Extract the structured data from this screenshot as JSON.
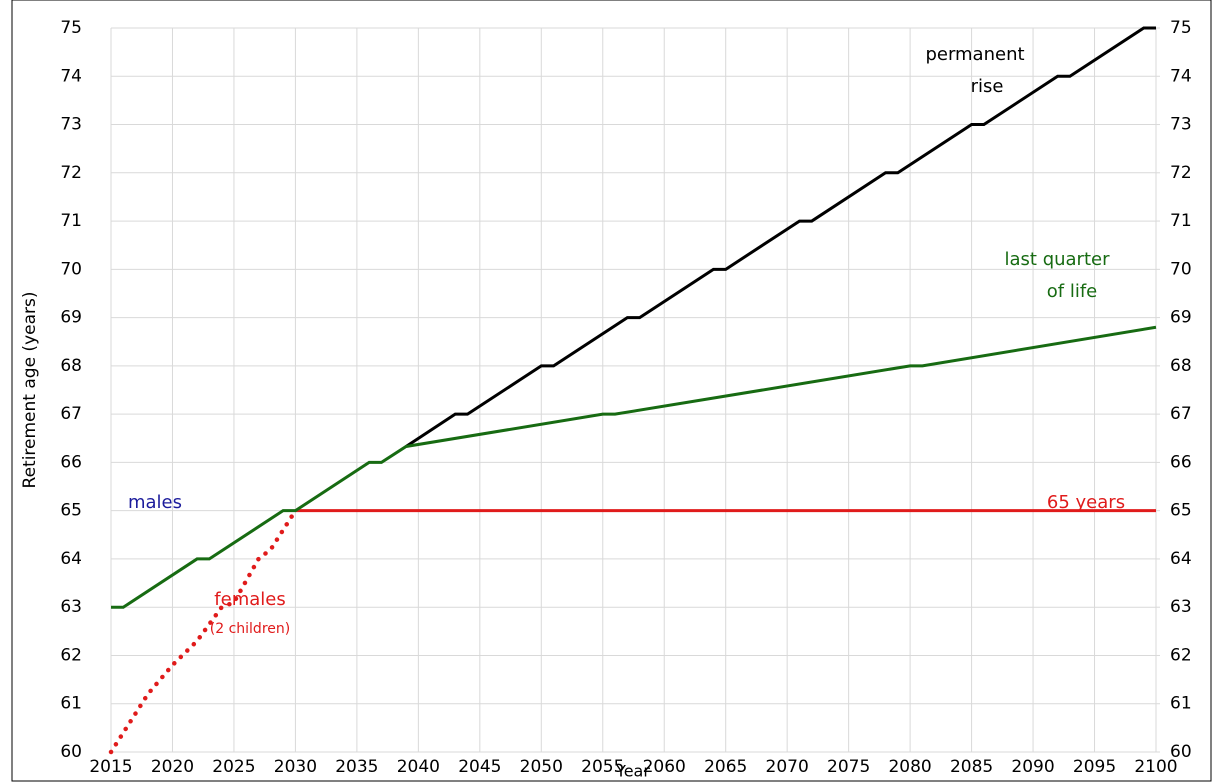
{
  "chart_data": {
    "type": "line",
    "xlabel": "Year",
    "ylabel": "Retirement age (years)",
    "xlim": [
      2015,
      2100
    ],
    "xticks": [
      2015,
      2020,
      2025,
      2030,
      2035,
      2040,
      2045,
      2050,
      2055,
      2060,
      2065,
      2070,
      2075,
      2080,
      2085,
      2090,
      2095,
      2100
    ],
    "ylim": [
      60,
      75
    ],
    "yticks": [
      60,
      61,
      62,
      63,
      64,
      65,
      66,
      67,
      68,
      69,
      70,
      71,
      72,
      73,
      74,
      75
    ],
    "y2lim": [
      60,
      75
    ],
    "y2ticks": [
      60,
      61,
      62,
      63,
      64,
      65,
      66,
      67,
      68,
      69,
      70,
      71,
      72,
      73,
      74,
      75
    ],
    "grid": true,
    "series": [
      {
        "color": "#e01b1b",
        "dash": false,
        "x": [
          2030,
          2100
        ],
        "values": [
          65,
          65
        ]
      },
      {
        "color": "#e01b1b",
        "dash": true,
        "x": [
          2015,
          2018,
          2020,
          2022,
          2024,
          2025,
          2027,
          2028,
          2030
        ],
        "values": [
          60,
          61.2,
          61.8,
          62.3,
          63,
          63.1,
          64,
          64.2,
          65
        ]
      },
      {
        "color": "#000000",
        "dash": false,
        "x": [
          2039,
          2043,
          2044,
          2050,
          2051,
          2057,
          2058,
          2064,
          2065,
          2071,
          2072,
          2078,
          2079,
          2085,
          2086,
          2092,
          2093,
          2099,
          2100
        ],
        "values": [
          66.33,
          67,
          67,
          68,
          68,
          69,
          69,
          70,
          70,
          71,
          71,
          72,
          72,
          73,
          73,
          74,
          74,
          75,
          75
        ]
      },
      {
        "color": "#176b12",
        "dash": false,
        "x": [
          2015,
          2016,
          2022,
          2023,
          2029,
          2030,
          2036,
          2037,
          2039,
          2055,
          2056,
          2080,
          2081,
          2100
        ],
        "values": [
          63,
          63,
          64,
          64,
          65,
          65,
          66,
          66,
          66.33,
          67,
          67,
          68,
          68,
          68.8
        ]
      }
    ],
    "annotations": [
      {
        "text": "permanent",
        "color": "#000000"
      },
      {
        "text": "rise",
        "color": "#000000"
      },
      {
        "text": "last quarter",
        "color": "#176b12"
      },
      {
        "text": "of life",
        "color": "#176b12"
      },
      {
        "text": "males",
        "color": "#1c1c9c"
      },
      {
        "text": "65 years",
        "color": "#e01b1b"
      },
      {
        "text": "females",
        "color": "#e01b1b"
      },
      {
        "text": "(2 children)",
        "color": "#e01b1b"
      }
    ]
  }
}
